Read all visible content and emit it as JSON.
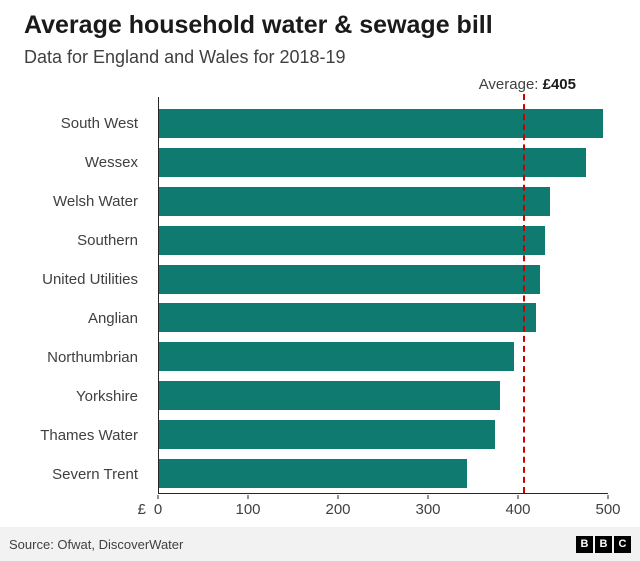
{
  "header": {
    "title": "Average household water & sewage bill",
    "subtitle": "Data for England and Wales for 2018-19"
  },
  "annotation": {
    "label": "Average:",
    "value": "£405"
  },
  "chart_data": {
    "type": "bar",
    "orientation": "horizontal",
    "title": "Average household water & sewage bill",
    "subtitle": "Data for England and Wales for 2018-19",
    "categories": [
      "South West",
      "Wessex",
      "Welsh Water",
      "Southern",
      "United Utilities",
      "Anglian",
      "Northumbrian",
      "Yorkshire",
      "Thames Water",
      "Severn Trent"
    ],
    "values": [
      494,
      476,
      435,
      430,
      424,
      420,
      395,
      380,
      374,
      343
    ],
    "average": 405,
    "average_label": "Average: £405",
    "unit_label": "£",
    "xlim": [
      0,
      500
    ],
    "xticks": [
      0,
      100,
      200,
      300,
      400,
      500
    ],
    "grid": false,
    "legend": false,
    "bar_color": "#0e7a70",
    "average_line_color": "#cc0000"
  },
  "footer": {
    "source": "Source: Ofwat, DiscoverWater",
    "logo_letters": [
      "B",
      "B",
      "C"
    ]
  }
}
